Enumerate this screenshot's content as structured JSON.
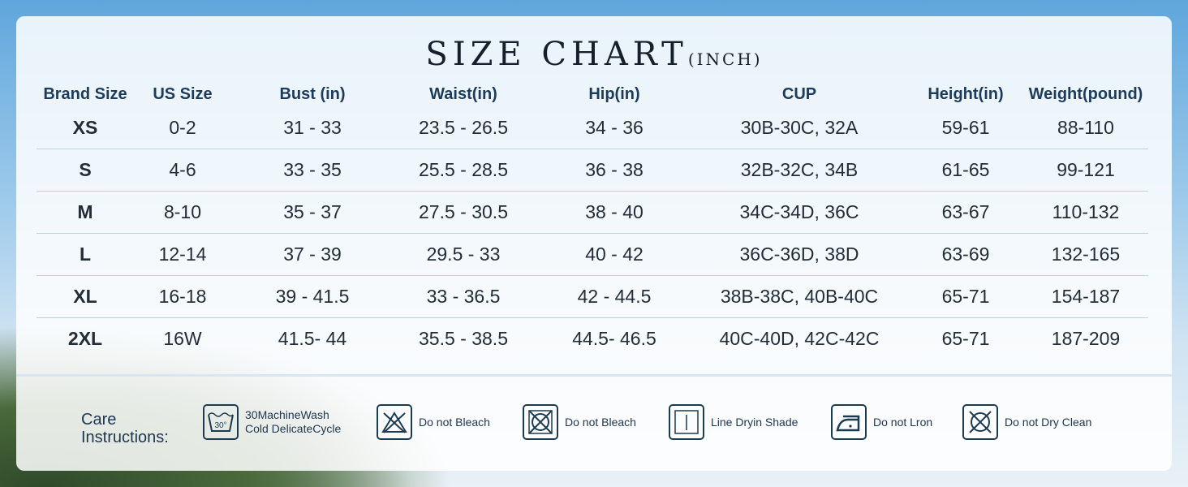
{
  "title": {
    "main": "SIZE CHART",
    "unit": "(INCH)"
  },
  "table": {
    "headers": [
      "Brand Size",
      "US Size",
      "Bust (in)",
      "Waist(in)",
      "Hip(in)",
      "CUP",
      "Height(in)",
      "Weight(pound)"
    ],
    "rows": [
      [
        "XS",
        "0-2",
        "31 - 33",
        "23.5 - 26.5",
        "34 - 36",
        "30B-30C, 32A",
        "59-61",
        "88-110"
      ],
      [
        "S",
        "4-6",
        "33 - 35",
        "25.5 - 28.5",
        "36 - 38",
        "32B-32C, 34B",
        "61-65",
        "99-121"
      ],
      [
        "M",
        "8-10",
        "35 - 37",
        "27.5 - 30.5",
        "38 - 40",
        "34C-34D, 36C",
        "63-67",
        "110-132"
      ],
      [
        "L",
        "12-14",
        "37 - 39",
        "29.5 - 33",
        "40 - 42",
        "36C-36D, 38D",
        "63-69",
        "132-165"
      ],
      [
        "XL",
        "16-18",
        "39 - 41.5",
        "33 - 36.5",
        "42 - 44.5",
        "38B-38C, 40B-40C",
        "65-71",
        "154-187"
      ],
      [
        "2XL",
        "16W",
        "41.5- 44",
        "35.5 - 38.5",
        "44.5- 46.5",
        "40C-40D, 42C-42C",
        "65-71",
        "187-209"
      ]
    ]
  },
  "care": {
    "label_line1": "Care",
    "label_line2": "Instructions:",
    "items": [
      {
        "icon": "wash-30-icon",
        "line1": "30MachineWash",
        "line2": "Cold DelicateCycle",
        "badge": "30°"
      },
      {
        "icon": "do-not-bleach-icon",
        "line1": "Do not Bleach"
      },
      {
        "icon": "do-not-tumble-dry-icon",
        "line1": "Do not Bleach"
      },
      {
        "icon": "line-dry-shade-icon",
        "line1": "Line Dryin Shade"
      },
      {
        "icon": "iron-icon",
        "line1": "Do not Lron"
      },
      {
        "icon": "do-not-dry-clean-icon",
        "line1": "Do not Dry Clean"
      }
    ]
  },
  "colors": {
    "text": "#1d3b5a",
    "icon": "#1d3b50",
    "separator": "#b7d3e6"
  }
}
